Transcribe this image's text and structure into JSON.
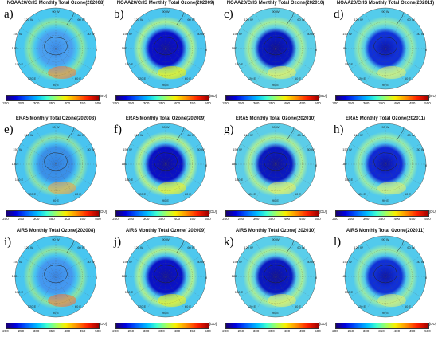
{
  "colorbar": {
    "ticks": [
      "200",
      "250",
      "300",
      "350",
      "400",
      "450",
      "500"
    ],
    "unit": "[DU]"
  },
  "grid_labels": {
    "top": "90 W",
    "left_top": "120 W",
    "left_mid": "150 W",
    "left": "180",
    "left_bot": "150 E",
    "right_top": "60 W",
    "right_mid": "30 W",
    "right": "0",
    "bottom_left": "120 E",
    "bottom": "90 E",
    "bottom_right": "60 E"
  },
  "panels": [
    {
      "letter": "a)",
      "title": "NOAA20/CrIS Monthly Total Ozone(202008)",
      "colors": {
        "outer": "#49c8f0",
        "ring": "#8ee8a0",
        "hole": "#4aa0f0",
        "core": "#3a8ae8",
        "hot": "#ff7a30"
      }
    },
    {
      "letter": "b)",
      "title": "NOAA20/CrIS Monthly Total Ozone(202009)",
      "colors": {
        "outer": "#4cc6ef",
        "ring": "#aef290",
        "hole": "#0a10c8",
        "core": "#12129a",
        "hot": "#f8f000"
      }
    },
    {
      "letter": "c)",
      "title": "NOAA20/CrIS Monthly Total Ozone(202010)",
      "colors": {
        "outer": "#5ccfe8",
        "ring": "#a8f09a",
        "hole": "#0818c0",
        "core": "#101090",
        "hot": "#f0f060"
      }
    },
    {
      "letter": "d)",
      "title": "NOAA20/CrIS Monthly Total Ozone(202011)",
      "colors": {
        "outer": "#54cceb",
        "ring": "#98ecaa",
        "hole": "#1030d8",
        "core": "#0c14a8",
        "hot": "#e8f070"
      }
    },
    {
      "letter": "e)",
      "title": "ERA5 Monthly Total Ozone(202008)",
      "colors": {
        "outer": "#49c4f0",
        "ring": "#8ee4a8",
        "hole": "#3a90e8",
        "core": "#3080e0",
        "hot": "#f8a040"
      }
    },
    {
      "letter": "f)",
      "title": "ERA5 Monthly Total Ozone(202009)",
      "colors": {
        "outer": "#50c8ee",
        "ring": "#b4f28c",
        "hole": "#0a10c4",
        "core": "#121090",
        "hot": "#f4f020"
      }
    },
    {
      "letter": "g)",
      "title": "ERA5 Monthly Total Ozone(202010)",
      "colors": {
        "outer": "#5ccde8",
        "ring": "#aef096",
        "hole": "#0a18c0",
        "core": "#14148c",
        "hot": "#eef060"
      }
    },
    {
      "letter": "h)",
      "title": "ERA5 Monthly Total Ozone(202011)",
      "colors": {
        "outer": "#52caec",
        "ring": "#9ceea8",
        "hole": "#1028d4",
        "core": "#0c12a0",
        "hot": "#e4f070"
      }
    },
    {
      "letter": "i)",
      "title": "AIRS Monthly Total Ozone(202008)",
      "colors": {
        "outer": "#48c6f0",
        "ring": "#90e6a0",
        "hole": "#4498f0",
        "core": "#3a86e4",
        "hot": "#ff7030"
      }
    },
    {
      "letter": "j)",
      "title": "AIRS Monthly Total Ozone( 202009)",
      "colors": {
        "outer": "#4ec8ee",
        "ring": "#b0f290",
        "hole": "#0a12c6",
        "core": "#121298",
        "hot": "#f6f010"
      }
    },
    {
      "letter": "k)",
      "title": "AIRS Monthly Total Ozone( 202010)",
      "colors": {
        "outer": "#5aceea",
        "ring": "#aaf098",
        "hole": "#0a18c0",
        "core": "#121290",
        "hot": "#eef060"
      }
    },
    {
      "letter": "l)",
      "title": "AIRS Monthly Total Ozone(202011)",
      "colors": {
        "outer": "#52caec",
        "ring": "#9aeca8",
        "hole": "#1030d6",
        "core": "#0c14a6",
        "hot": "#e6f070"
      }
    }
  ]
}
